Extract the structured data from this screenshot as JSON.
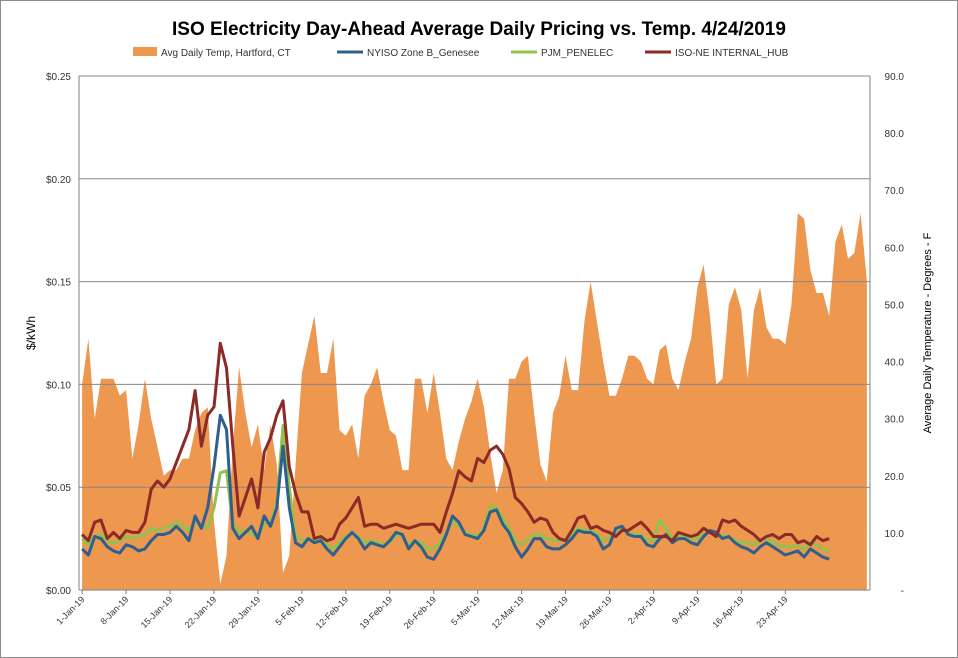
{
  "chart_data": {
    "type": "line",
    "title": "ISO Electricity Day-Ahead Average Daily Pricing vs. Temp. 4/24/2019",
    "ylabel": "$/kWh",
    "y2label": "Average Daily Temperature - Degrees - F",
    "ylim": [
      0,
      0.25
    ],
    "y2lim": [
      0,
      90
    ],
    "y_ticks": [
      "$0.00",
      "$0.05",
      "$0.10",
      "$0.15",
      "$0.20",
      "$0.25"
    ],
    "y2_ticks": [
      "-",
      "10.0",
      "20.0",
      "30.0",
      "40.0",
      "50.0",
      "60.0",
      "70.0",
      "80.0",
      "90.0"
    ],
    "x_ticks": [
      "1-Jan-19",
      "8-Jan-19",
      "15-Jan-19",
      "22-Jan-19",
      "29-Jan-19",
      "5-Feb-19",
      "12-Feb-19",
      "19-Feb-19",
      "26-Feb-19",
      "5-Mar-19",
      "12-Mar-19",
      "19-Mar-19",
      "26-Mar-19",
      "2-Apr-19",
      "9-Apr-19",
      "16-Apr-19",
      "23-Apr-19"
    ],
    "x_start": "2019-01-01",
    "grid": true,
    "legend": "top",
    "colors": {
      "temp": "#ed974f",
      "nyiso": "#2f5f8e",
      "pjm": "#93c14d",
      "isone": "#8b2a26"
    },
    "series": [
      {
        "name": "Avg Daily Temp, Hartford, CT",
        "axis": "secondary",
        "type": "area",
        "values": [
          36,
          44,
          30,
          37,
          37,
          37,
          34,
          35,
          23,
          29,
          37,
          30,
          25,
          20,
          21,
          21,
          23,
          23,
          28,
          31,
          32,
          12,
          1,
          6,
          25,
          39,
          31,
          25,
          29,
          21,
          29,
          22,
          3,
          6,
          22,
          38,
          43,
          48,
          38,
          38,
          44,
          28,
          27,
          29,
          23,
          34,
          36,
          39,
          33,
          28,
          27,
          21,
          21,
          37,
          37,
          31,
          38,
          31,
          23,
          21,
          26,
          30,
          33,
          37,
          32,
          24,
          17,
          21,
          37,
          37,
          40,
          41,
          31,
          22,
          19,
          31,
          34,
          41,
          35,
          35,
          47,
          54,
          47,
          40,
          34,
          34,
          37,
          41,
          41,
          40,
          37,
          36,
          42,
          43,
          37,
          35,
          40,
          44,
          53,
          57,
          48,
          36,
          37,
          50,
          53,
          49,
          37,
          49,
          53,
          46,
          44,
          44,
          43,
          50,
          66,
          65,
          56,
          52,
          52,
          48,
          61,
          64,
          58,
          59,
          66,
          54
        ]
      },
      {
        "name": "NYISO Zone B_Genesee",
        "axis": "primary",
        "type": "line",
        "values": [
          0.02,
          0.017,
          0.026,
          0.025,
          0.021,
          0.019,
          0.018,
          0.022,
          0.021,
          0.019,
          0.02,
          0.024,
          0.027,
          0.027,
          0.028,
          0.031,
          0.028,
          0.024,
          0.036,
          0.03,
          0.04,
          0.06,
          0.085,
          0.078,
          0.03,
          0.025,
          0.028,
          0.031,
          0.025,
          0.036,
          0.031,
          0.04,
          0.07,
          0.04,
          0.023,
          0.021,
          0.025,
          0.023,
          0.024,
          0.02,
          0.017,
          0.021,
          0.025,
          0.028,
          0.025,
          0.02,
          0.023,
          0.022,
          0.021,
          0.024,
          0.028,
          0.027,
          0.02,
          0.024,
          0.021,
          0.016,
          0.015,
          0.02,
          0.027,
          0.036,
          0.033,
          0.027,
          0.026,
          0.025,
          0.029,
          0.038,
          0.039,
          0.032,
          0.028,
          0.021,
          0.016,
          0.02,
          0.025,
          0.025,
          0.021,
          0.02,
          0.02,
          0.022,
          0.025,
          0.029,
          0.028,
          0.028,
          0.026,
          0.02,
          0.022,
          0.03,
          0.031,
          0.027,
          0.026,
          0.026,
          0.022,
          0.021,
          0.025,
          0.027,
          0.023,
          0.025,
          0.025,
          0.023,
          0.022,
          0.026,
          0.029,
          0.028,
          0.025,
          0.026,
          0.023,
          0.021,
          0.02,
          0.018,
          0.021,
          0.023,
          0.021,
          0.019,
          0.017,
          0.018,
          0.019,
          0.016,
          0.02,
          0.018,
          0.016,
          0.015
        ]
      },
      {
        "name": "PJM_PENELEC",
        "axis": "primary",
        "type": "line",
        "values": [
          0.025,
          0.022,
          0.026,
          0.027,
          0.024,
          0.023,
          0.024,
          0.026,
          0.025,
          0.026,
          0.027,
          0.03,
          0.029,
          0.03,
          0.031,
          0.033,
          0.031,
          0.029,
          0.033,
          0.032,
          0.03,
          0.04,
          0.057,
          0.058,
          0.032,
          0.028,
          0.029,
          0.027,
          0.026,
          0.032,
          0.033,
          0.042,
          0.08,
          0.05,
          0.026,
          0.024,
          0.025,
          0.024,
          0.025,
          0.022,
          0.02,
          0.023,
          0.026,
          0.028,
          0.026,
          0.023,
          0.024,
          0.023,
          0.022,
          0.023,
          0.027,
          0.026,
          0.022,
          0.024,
          0.023,
          0.02,
          0.02,
          0.023,
          0.028,
          0.033,
          0.031,
          0.028,
          0.027,
          0.026,
          0.03,
          0.041,
          0.04,
          0.035,
          0.03,
          0.024,
          0.022,
          0.025,
          0.027,
          0.027,
          0.025,
          0.024,
          0.024,
          0.025,
          0.027,
          0.03,
          0.029,
          0.029,
          0.027,
          0.024,
          0.025,
          0.029,
          0.03,
          0.028,
          0.027,
          0.027,
          0.024,
          0.024,
          0.034,
          0.03,
          0.025,
          0.026,
          0.026,
          0.025,
          0.025,
          0.027,
          0.029,
          0.028,
          0.026,
          0.026,
          0.024,
          0.023,
          0.023,
          0.022,
          0.024,
          0.025,
          0.023,
          0.022,
          0.021,
          0.021,
          0.022,
          0.02,
          0.023,
          0.022,
          0.02,
          0.019
        ]
      },
      {
        "name": "ISO-NE INTERNAL_HUB",
        "axis": "primary",
        "type": "line",
        "values": [
          0.027,
          0.024,
          0.033,
          0.034,
          0.025,
          0.028,
          0.025,
          0.029,
          0.028,
          0.028,
          0.033,
          0.049,
          0.053,
          0.05,
          0.054,
          0.062,
          0.07,
          0.078,
          0.097,
          0.07,
          0.085,
          0.089,
          0.12,
          0.108,
          0.07,
          0.036,
          0.045,
          0.054,
          0.04,
          0.067,
          0.074,
          0.085,
          0.092,
          0.06,
          0.047,
          0.038,
          0.038,
          0.025,
          0.026,
          0.024,
          0.025,
          0.032,
          0.035,
          0.04,
          0.045,
          0.031,
          0.032,
          0.032,
          0.03,
          0.031,
          0.032,
          0.031,
          0.03,
          0.031,
          0.032,
          0.032,
          0.032,
          0.028,
          0.038,
          0.047,
          0.058,
          0.055,
          0.053,
          0.064,
          0.062,
          0.068,
          0.07,
          0.066,
          0.059,
          0.045,
          0.042,
          0.038,
          0.033,
          0.035,
          0.034,
          0.028,
          0.025,
          0.024,
          0.029,
          0.035,
          0.036,
          0.03,
          0.031,
          0.029,
          0.028,
          0.026,
          0.029,
          0.029,
          0.031,
          0.033,
          0.03,
          0.026,
          0.026,
          0.026,
          0.024,
          0.028,
          0.027,
          0.026,
          0.027,
          0.03,
          0.028,
          0.026,
          0.034,
          0.033,
          0.034,
          0.031,
          0.029,
          0.027,
          0.024,
          0.026,
          0.027,
          0.025,
          0.027,
          0.027,
          0.023,
          0.024,
          0.022,
          0.026,
          0.024,
          0.025
        ]
      }
    ]
  }
}
